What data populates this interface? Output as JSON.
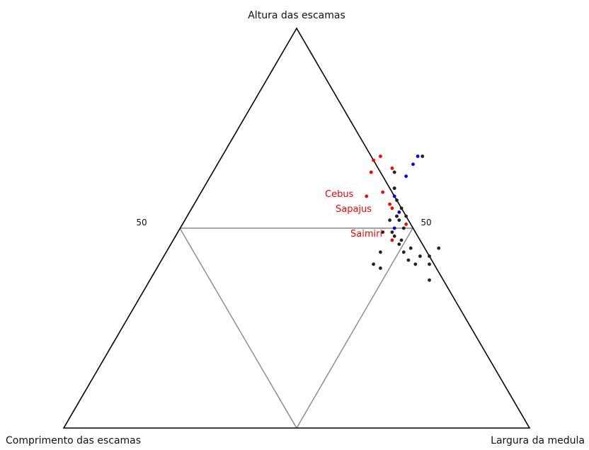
{
  "chart_data": {
    "type": "scatter",
    "subtype": "ternary",
    "vertices": {
      "top": "Altura das escamas",
      "left": "Comprimento das escamas",
      "right": "Largura da medula"
    },
    "tick_labels": {
      "left_edge_mid": "50",
      "right_edge_mid": "50"
    },
    "grid": "midpoint triangle",
    "colors": {
      "Cebus": "#ff0000",
      "Sapajus": "#0000ff",
      "Saimiri": "#222222",
      "axis": "#000000",
      "grid": "#888888"
    },
    "group_labels": [
      {
        "text": "Cebus",
        "color": "#ff0000"
      },
      {
        "text": "Sapajus",
        "color": "#ff0000"
      },
      {
        "text": "Saimiri",
        "color": "#ff0000"
      }
    ],
    "series": [
      {
        "name": "Cebus",
        "color": "#ff0000",
        "points": [
          {
            "top": 0.67,
            "right": 0.33
          },
          {
            "top": 0.68,
            "right": 0.34
          },
          {
            "top": 0.64,
            "right": 0.34
          },
          {
            "top": 0.65,
            "right": 0.38
          },
          {
            "top": 0.58,
            "right": 0.36
          },
          {
            "top": 0.59,
            "right": 0.39
          },
          {
            "top": 0.56,
            "right": 0.42
          },
          {
            "top": 0.55,
            "right": 0.43
          },
          {
            "top": 0.53,
            "right": 0.45
          },
          {
            "top": 0.51,
            "right": 0.48
          },
          {
            "top": 0.47,
            "right": 0.47
          }
        ]
      },
      {
        "name": "Sapajus",
        "color": "#0000ff",
        "points": [
          {
            "top": 0.68,
            "right": 0.42
          },
          {
            "top": 0.66,
            "right": 0.42
          },
          {
            "top": 0.63,
            "right": 0.42
          },
          {
            "top": 0.6,
            "right": 0.41
          },
          {
            "top": 0.58,
            "right": 0.42
          },
          {
            "top": 0.54,
            "right": 0.45
          },
          {
            "top": 0.5,
            "right": 0.46
          }
        ]
      },
      {
        "name": "Saimiri",
        "color": "#222222",
        "points": [
          {
            "top": 0.68,
            "right": 0.43
          },
          {
            "top": 0.64,
            "right": 0.39
          },
          {
            "top": 0.6,
            "right": 0.41
          },
          {
            "top": 0.57,
            "right": 0.43
          },
          {
            "top": 0.55,
            "right": 0.45
          },
          {
            "top": 0.53,
            "right": 0.45
          },
          {
            "top": 0.53,
            "right": 0.47
          },
          {
            "top": 0.52,
            "right": 0.46
          },
          {
            "top": 0.5,
            "right": 0.48
          },
          {
            "top": 0.49,
            "right": 0.46
          },
          {
            "top": 0.48,
            "right": 0.47
          },
          {
            "top": 0.47,
            "right": 0.49
          },
          {
            "top": 0.45,
            "right": 0.52
          },
          {
            "top": 0.46,
            "right": 0.49
          },
          {
            "top": 0.44,
            "right": 0.51
          },
          {
            "top": 0.42,
            "right": 0.53
          },
          {
            "top": 0.41,
            "right": 0.55
          },
          {
            "top": 0.43,
            "right": 0.55
          },
          {
            "top": 0.43,
            "right": 0.57
          },
          {
            "top": 0.45,
            "right": 0.58
          },
          {
            "top": 0.37,
            "right": 0.6
          },
          {
            "top": 0.41,
            "right": 0.58
          },
          {
            "top": 0.41,
            "right": 0.46
          },
          {
            "top": 0.4,
            "right": 0.48
          },
          {
            "top": 0.49,
            "right": 0.44
          },
          {
            "top": 0.52,
            "right": 0.44
          },
          {
            "top": 0.44,
            "right": 0.46
          }
        ]
      }
    ]
  }
}
